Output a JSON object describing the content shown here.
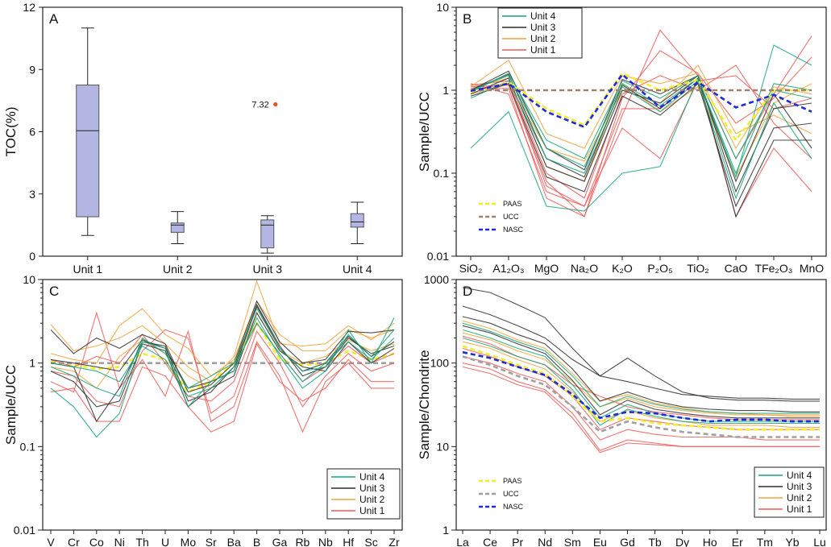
{
  "chart_data": [
    {
      "panel": "A",
      "type": "box",
      "ylabel": "TOC(%)",
      "ylim": [
        0,
        12
      ],
      "yticks": [
        "0",
        "3",
        "6",
        "9",
        "12"
      ],
      "categories": [
        "Unit 1",
        "Unit 2",
        "Unit 3",
        "Unit 4"
      ],
      "boxes": [
        {
          "min": 1.0,
          "q1": 1.9,
          "median": 6.05,
          "q3": 8.25,
          "max": 11.0
        },
        {
          "min": 0.6,
          "q1": 1.15,
          "median": 1.5,
          "q3": 1.6,
          "max": 2.15
        },
        {
          "min": 0.15,
          "q1": 0.4,
          "median": 1.5,
          "q3": 1.75,
          "max": 1.95
        },
        {
          "min": 0.6,
          "q1": 1.4,
          "median": 1.65,
          "q3": 2.05,
          "max": 2.6
        }
      ],
      "outliers": [
        {
          "category_index": 2,
          "value": 7.32,
          "label": "7.32"
        }
      ],
      "colors": {
        "box": "#b3b6e3",
        "outlier": "#e8501f"
      }
    },
    {
      "panel": "B",
      "type": "line",
      "scale": "log",
      "ylabel": "Sample/UCC",
      "ylim": [
        0.01,
        10
      ],
      "yticks": [
        "0.01",
        "0.1",
        "1",
        "10"
      ],
      "categories": [
        "SiO₂",
        "A1₂O₃",
        "MgO",
        "Na₂O",
        "K₂O",
        "P₂O₅",
        "TiO₂",
        "CaO",
        "TFe₂O₃",
        "MnO"
      ],
      "legend": [
        "Unit 4",
        "Unit 3",
        "Unit 2",
        "Unit 1"
      ],
      "reference_legend": [
        "PAAS",
        "UCC",
        "NASC"
      ],
      "reference": [
        {
          "name": "PAAS",
          "color": "#f1ee2a",
          "values": [
            0.95,
            1.25,
            0.6,
            0.38,
            1.6,
            1.0,
            1.35,
            0.25,
            1.0,
            1.0
          ]
        },
        {
          "name": "UCC",
          "color": "#a0816c",
          "values": [
            1,
            1,
            1,
            1,
            1,
            1,
            1,
            1,
            1,
            1
          ]
        },
        {
          "name": "NASC",
          "color": "#1f2bd6",
          "values": [
            0.98,
            1.2,
            0.55,
            0.36,
            1.55,
            0.62,
            1.25,
            0.62,
            0.88,
            0.55
          ]
        }
      ],
      "series": [
        {
          "unit": "Unit 4",
          "values": [
            0.2,
            0.55,
            0.04,
            0.035,
            0.1,
            0.12,
            1.4,
            0.09,
            3.5,
            2.0
          ]
        },
        {
          "unit": "Unit 4",
          "values": [
            0.95,
            1.6,
            0.25,
            0.15,
            1.3,
            0.8,
            1.5,
            0.15,
            1.0,
            0.8
          ]
        },
        {
          "unit": "Unit 4",
          "values": [
            0.8,
            1.3,
            0.15,
            0.1,
            1.1,
            0.55,
            1.3,
            0.05,
            0.7,
            0.15
          ]
        },
        {
          "unit": "Unit 4",
          "values": [
            1.0,
            1.5,
            0.2,
            0.12,
            1.2,
            0.65,
            1.4,
            0.1,
            1.2,
            1.0
          ]
        },
        {
          "unit": "Unit 3",
          "values": [
            0.9,
            1.4,
            0.12,
            0.08,
            1.0,
            0.7,
            1.5,
            0.03,
            0.25,
            0.25
          ]
        },
        {
          "unit": "Unit 3",
          "values": [
            1.0,
            1.7,
            0.2,
            0.11,
            1.35,
            0.9,
            1.5,
            0.06,
            0.6,
            0.7
          ]
        },
        {
          "unit": "Unit 3",
          "values": [
            0.85,
            1.2,
            0.09,
            0.06,
            0.85,
            0.5,
            1.2,
            0.04,
            0.35,
            0.4
          ]
        },
        {
          "unit": "Unit 3",
          "values": [
            1.0,
            1.55,
            0.15,
            0.09,
            1.15,
            0.6,
            1.4,
            0.08,
            0.9,
            0.2
          ]
        },
        {
          "unit": "Unit 2",
          "values": [
            1.1,
            2.3,
            0.3,
            0.2,
            1.5,
            1.2,
            1.6,
            0.2,
            1.1,
            0.9
          ]
        },
        {
          "unit": "Unit 2",
          "values": [
            0.9,
            1.2,
            0.2,
            0.14,
            1.0,
            0.7,
            2.0,
            0.3,
            0.5,
            0.3
          ]
        },
        {
          "unit": "Unit 2",
          "values": [
            1.05,
            1.4,
            0.12,
            0.08,
            1.2,
            0.55,
            1.1,
            0.09,
            0.7,
            1.2
          ]
        },
        {
          "unit": "Unit 1",
          "values": [
            1.2,
            0.9,
            0.06,
            0.04,
            0.35,
            0.15,
            1.3,
            1.5,
            0.6,
            0.8
          ]
        },
        {
          "unit": "Unit 1",
          "values": [
            1.1,
            1.15,
            0.08,
            0.03,
            0.5,
            5.3,
            1.5,
            0.15,
            0.9,
            4.5
          ]
        },
        {
          "unit": "Unit 1",
          "values": [
            1.15,
            1.3,
            0.1,
            0.05,
            0.9,
            1.5,
            1.0,
            2.0,
            0.4,
            0.15
          ]
        },
        {
          "unit": "Unit 1",
          "values": [
            1.0,
            1.2,
            0.07,
            0.04,
            0.6,
            0.6,
            1.4,
            0.03,
            0.2,
            0.06
          ]
        },
        {
          "unit": "Unit 1",
          "values": [
            1.05,
            1.05,
            0.05,
            0.03,
            0.8,
            3.0,
            1.6,
            0.4,
            0.8,
            2.5
          ]
        }
      ]
    },
    {
      "panel": "C",
      "type": "line",
      "scale": "log",
      "ylabel": "Sample/UCC",
      "ylim": [
        0.01,
        10
      ],
      "yticks": [
        "0.01",
        "0.1",
        "1",
        "10"
      ],
      "categories": [
        "V",
        "Cr",
        "Co",
        "Ni",
        "Th",
        "U",
        "Mo",
        "Sr",
        "Ba",
        "B",
        "Ga",
        "Rb",
        "Nb",
        "Hf",
        "Sc",
        "Zr"
      ],
      "legend": [
        "Unit 4",
        "Unit 3",
        "Unit 2",
        "Unit 1"
      ],
      "reference": [
        {
          "name": "PAAS",
          "color": "#f1ee2a",
          "values": [
            1.05,
            0.95,
            0.85,
            0.9,
            1.3,
            1.1,
            0.45,
            0.6,
            1.0,
            3.0,
            1.1,
            0.95,
            1.0,
            1.4,
            1.1,
            1.3
          ]
        },
        {
          "name": "UCC",
          "color": "#a0a0a0",
          "values": [
            1,
            1,
            1,
            1,
            1,
            1,
            1,
            1,
            1,
            1,
            1,
            1,
            1,
            1,
            1,
            1
          ]
        }
      ],
      "series": [
        {
          "unit": "Unit 4",
          "values": [
            0.5,
            0.3,
            0.13,
            0.25,
            1.8,
            1.5,
            0.3,
            0.6,
            0.8,
            3.5,
            1.2,
            0.5,
            0.8,
            2.5,
            1.0,
            3.5
          ]
        },
        {
          "unit": "Unit 4",
          "values": [
            0.9,
            0.7,
            0.5,
            0.4,
            2.0,
            1.3,
            0.5,
            0.7,
            1.0,
            4.5,
            1.5,
            0.8,
            0.9,
            2.2,
            1.2,
            2.5
          ]
        },
        {
          "unit": "Unit 4",
          "values": [
            1.0,
            0.9,
            0.8,
            0.6,
            1.6,
            1.1,
            0.4,
            0.5,
            0.9,
            3.0,
            1.3,
            0.6,
            1.0,
            1.8,
            1.1,
            2.0
          ]
        },
        {
          "unit": "Unit 3",
          "values": [
            2.5,
            1.3,
            2.0,
            1.5,
            2.2,
            1.7,
            0.45,
            0.55,
            1.0,
            5.5,
            1.8,
            1.0,
            1.1,
            2.4,
            2.3,
            2.5
          ]
        },
        {
          "unit": "Unit 3",
          "values": [
            1.0,
            0.9,
            0.2,
            0.5,
            1.8,
            1.6,
            0.35,
            0.45,
            0.9,
            5.0,
            1.6,
            0.7,
            0.9,
            2.0,
            1.3,
            1.6
          ]
        },
        {
          "unit": "Unit 3",
          "values": [
            0.8,
            0.6,
            0.3,
            0.35,
            1.7,
            1.4,
            0.3,
            0.5,
            0.7,
            4.0,
            1.4,
            0.9,
            0.8,
            1.8,
            1.0,
            1.5
          ]
        },
        {
          "unit": "Unit 3",
          "values": [
            1.1,
            1.0,
            0.9,
            0.8,
            1.9,
            1.5,
            0.5,
            0.6,
            0.8,
            4.8,
            1.5,
            0.8,
            1.0,
            2.1,
            1.2,
            1.8
          ]
        },
        {
          "unit": "Unit 2",
          "values": [
            2.9,
            1.4,
            1.6,
            2.0,
            2.8,
            1.7,
            0.9,
            0.6,
            1.2,
            9.5,
            1.7,
            1.6,
            1.7,
            2.8,
            1.9,
            3.0
          ]
        },
        {
          "unit": "Unit 2",
          "values": [
            1.3,
            1.1,
            1.0,
            2.8,
            4.5,
            2.2,
            1.5,
            0.7,
            1.1,
            5.5,
            2.2,
            1.4,
            1.4,
            2.5,
            2.0,
            2.5
          ]
        },
        {
          "unit": "Unit 2",
          "values": [
            0.9,
            0.8,
            0.5,
            1.2,
            1.9,
            1.3,
            0.7,
            0.5,
            0.9,
            4.0,
            1.4,
            1.0,
            1.2,
            1.9,
            1.4,
            1.7
          ]
        },
        {
          "unit": "Unit 1",
          "values": [
            0.6,
            0.45,
            4.0,
            0.5,
            1.1,
            0.4,
            2.4,
            0.2,
            0.3,
            1.8,
            0.7,
            0.15,
            0.6,
            1.0,
            0.5,
            0.5
          ]
        },
        {
          "unit": "Unit 1",
          "values": [
            0.8,
            0.7,
            0.35,
            0.3,
            1.4,
            2.5,
            2.0,
            0.25,
            0.4,
            2.4,
            1.0,
            0.3,
            0.7,
            1.3,
            0.8,
            1.0
          ]
        },
        {
          "unit": "Unit 1",
          "values": [
            0.45,
            0.5,
            0.2,
            0.2,
            0.9,
            0.7,
            0.3,
            0.15,
            0.2,
            1.7,
            0.6,
            0.35,
            0.5,
            1.1,
            0.6,
            0.6
          ]
        },
        {
          "unit": "Unit 1",
          "values": [
            1.1,
            0.9,
            1.2,
            1.0,
            2.2,
            1.0,
            0.4,
            0.35,
            0.6,
            3.0,
            1.3,
            0.6,
            0.9,
            1.6,
            1.0,
            1.3
          ]
        }
      ]
    },
    {
      "panel": "D",
      "type": "line",
      "scale": "log",
      "ylabel": "Sample/Chondrite",
      "ylim": [
        1,
        1000
      ],
      "yticks": [
        "1",
        "10",
        "100",
        "1000"
      ],
      "categories": [
        "La",
        "Ce",
        "Pr",
        "Nd",
        "Sm",
        "Eu",
        "Gd",
        "Tb",
        "Dy",
        "Ho",
        "Er",
        "Tm",
        "Yb",
        "Lu"
      ],
      "legend": [
        "Unit 4",
        "Unit 3",
        "Unit 2",
        "Unit 1"
      ],
      "reference_legend": [
        "PAAS",
        "UCC",
        "NASC"
      ],
      "reference": [
        {
          "name": "PAAS",
          "color": "#f1ee2a",
          "values": [
            160,
            125,
            95,
            75,
            40,
            20,
            22,
            19,
            18,
            17,
            16,
            16,
            16,
            16
          ]
        },
        {
          "name": "UCC",
          "color": "#a0a0a0",
          "values": [
            120,
            95,
            70,
            55,
            30,
            15,
            20,
            17,
            15,
            14,
            13,
            13,
            13,
            13
          ]
        },
        {
          "name": "NASC",
          "color": "#1f2bd6",
          "values": [
            135,
            115,
            90,
            72,
            42,
            22,
            26,
            25,
            22,
            20,
            21,
            21,
            20,
            20
          ]
        }
      ],
      "series": [
        {
          "unit": "Unit 4",
          "values": [
            300,
            240,
            180,
            140,
            70,
            30,
            40,
            32,
            28,
            26,
            25,
            25,
            25,
            25
          ]
        },
        {
          "unit": "Unit 4",
          "values": [
            250,
            200,
            150,
            120,
            55,
            22,
            32,
            25,
            22,
            20,
            20,
            20,
            20,
            20
          ]
        },
        {
          "unit": "Unit 4",
          "values": [
            200,
            160,
            120,
            95,
            48,
            18,
            28,
            23,
            20,
            19,
            19,
            19,
            19,
            19
          ]
        },
        {
          "unit": "Unit 3",
          "values": [
            800,
            700,
            500,
            350,
            150,
            70,
            60,
            50,
            42,
            40,
            38,
            38,
            37,
            37
          ]
        },
        {
          "unit": "Unit 3",
          "values": [
            480,
            380,
            280,
            200,
            110,
            70,
            115,
            70,
            45,
            38,
            36,
            36,
            35,
            35
          ]
        },
        {
          "unit": "Unit 3",
          "values": [
            360,
            300,
            220,
            170,
            85,
            35,
            45,
            35,
            30,
            28,
            27,
            27,
            26,
            26
          ]
        },
        {
          "unit": "Unit 3",
          "values": [
            280,
            230,
            170,
            130,
            62,
            24,
            36,
            28,
            25,
            23,
            22,
            22,
            22,
            22
          ]
        },
        {
          "unit": "Unit 2",
          "values": [
            230,
            190,
            140,
            110,
            60,
            30,
            38,
            30,
            27,
            25,
            24,
            24,
            23,
            23
          ]
        },
        {
          "unit": "Unit 2",
          "values": [
            180,
            150,
            110,
            85,
            45,
            20,
            27,
            22,
            20,
            18,
            18,
            18,
            17,
            17
          ]
        },
        {
          "unit": "Unit 2",
          "values": [
            320,
            260,
            190,
            150,
            75,
            35,
            42,
            33,
            29,
            26,
            25,
            24,
            24,
            24
          ]
        },
        {
          "unit": "Unit 1",
          "values": [
            100,
            85,
            60,
            48,
            25,
            9,
            12,
            11,
            10,
            10,
            10,
            10,
            10,
            10
          ]
        },
        {
          "unit": "Unit 1",
          "values": [
            90,
            75,
            55,
            45,
            22,
            8.5,
            11,
            10.5,
            10,
            10,
            10,
            10,
            10,
            10
          ]
        },
        {
          "unit": "Unit 1",
          "values": [
            150,
            120,
            90,
            70,
            40,
            16,
            22,
            20,
            18,
            17,
            16,
            16,
            16,
            16
          ]
        },
        {
          "unit": "Unit 1",
          "values": [
            210,
            170,
            120,
            95,
            55,
            40,
            30,
            26,
            24,
            22,
            21,
            21,
            21,
            21
          ]
        },
        {
          "unit": "Unit 1",
          "values": [
            120,
            100,
            75,
            60,
            30,
            12,
            16,
            14,
            13,
            13,
            13,
            12,
            12,
            12
          ]
        }
      ]
    }
  ],
  "colors": {
    "Unit 4": "#14a57a",
    "Unit 3": "#2d2d2d",
    "Unit 2": "#f0a43b",
    "Unit 1": "#ee5a5a"
  }
}
